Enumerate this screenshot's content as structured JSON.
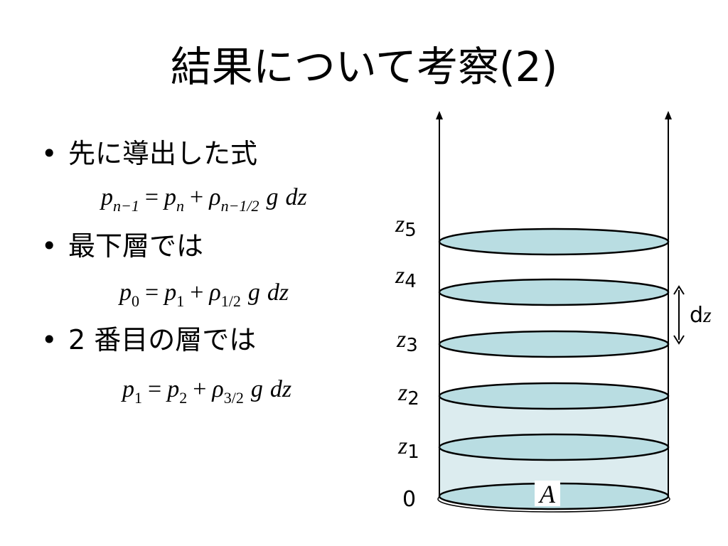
{
  "slide": {
    "title": "結果について考察(2)",
    "bullets": [
      {
        "text": "先に導出した式"
      },
      {
        "text": "最下層では"
      },
      {
        "text": "2 番目の層では"
      }
    ],
    "bullet_symbol": "•",
    "equations": [
      {
        "lhs": "p",
        "lhs_sub": "n−1",
        "op_eq": "=",
        "t1": "p",
        "t1_sub": "n",
        "op_plus": "+",
        "rho": "ρ",
        "rho_sub": "n−1/2",
        "g": "g",
        "d": "dz"
      },
      {
        "lhs": "p",
        "lhs_sub": "0",
        "op_eq": "=",
        "t1": "p",
        "t1_sub": "1",
        "op_plus": "+",
        "rho": "ρ",
        "rho_sub": "1/2",
        "g": "g",
        "d": "dz"
      },
      {
        "lhs": "p",
        "lhs_sub": "1",
        "op_eq": "=",
        "t1": "p",
        "t1_sub": "2",
        "op_plus": "+",
        "rho": "ρ",
        "rho_sub": "3/2",
        "g": "g",
        "d": "dz"
      }
    ]
  },
  "diagram": {
    "level_labels": [
      {
        "base": "z",
        "sub": "5"
      },
      {
        "base": "z",
        "sub": "4"
      },
      {
        "base": "z",
        "sub": "3"
      },
      {
        "base": "z",
        "sub": "2"
      },
      {
        "base": "z",
        "sub": "1"
      },
      {
        "base": "0",
        "sub": ""
      }
    ],
    "dz_label_d": "d",
    "dz_label_z": "z",
    "area_label": "A",
    "disk_fill": "#b9dde2",
    "filled_column_fill": "#dcecef",
    "stroke_color": "#000000"
  }
}
